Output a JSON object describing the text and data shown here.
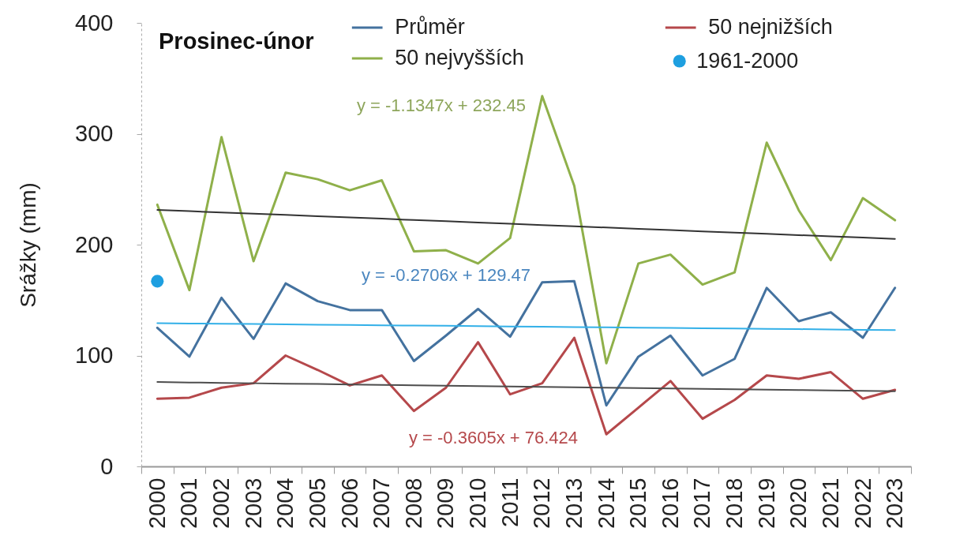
{
  "chart_data": {
    "type": "line",
    "title": "Prosinec-únor",
    "ylabel": "Srážky  (mm)",
    "categories": [
      "2000",
      "2001",
      "2002",
      "2003",
      "2004",
      "2005",
      "2006",
      "2007",
      "2008",
      "2009",
      "2010",
      "2011",
      "2012",
      "2013",
      "2014",
      "2015",
      "2016",
      "2017",
      "2018",
      "2019",
      "2020",
      "2021",
      "2022",
      "2023"
    ],
    "series": [
      {
        "name": "Průměr",
        "color": "#44729f",
        "values": [
          125,
          99,
          152,
          115,
          165,
          149,
          141,
          141,
          95,
          118,
          142,
          117,
          166,
          167,
          55,
          99,
          118,
          82,
          97,
          161,
          131,
          139,
          116,
          161
        ]
      },
      {
        "name": "50 nejnižších",
        "color": "#b5484b",
        "values": [
          61,
          62,
          71,
          75,
          100,
          87,
          73,
          82,
          50,
          71,
          112,
          65,
          75,
          116,
          29,
          53,
          77,
          43,
          60,
          82,
          79,
          85,
          61,
          69
        ]
      },
      {
        "name": "50 nejvyšších",
        "color": "#8fb04a",
        "values": [
          236,
          159,
          297,
          185,
          265,
          259,
          249,
          258,
          194,
          195,
          183,
          206,
          334,
          253,
          93,
          183,
          191,
          164,
          175,
          292,
          231,
          186,
          242,
          222
        ]
      },
      {
        "name": "1961-2000",
        "type": "scatter",
        "color": "#1e9fe0",
        "values": [
          167,
          null,
          null,
          null,
          null,
          null,
          null,
          null,
          null,
          null,
          null,
          null,
          null,
          null,
          null,
          null,
          null,
          null,
          null,
          null,
          null,
          null,
          null,
          null
        ]
      },
      {
        "type": "line",
        "color": "#333333",
        "values": [
          231.3,
          230.2,
          229.0,
          227.9,
          226.8,
          225.6,
          224.5,
          223.4,
          222.2,
          221.1,
          220.0,
          218.8,
          217.7,
          216.6,
          215.4,
          214.3,
          213.2,
          212.0,
          210.9,
          209.8,
          208.6,
          207.5,
          206.4,
          205.2
        ]
      },
      {
        "type": "line",
        "color": "#33b0e8",
        "values": [
          129.2,
          128.9,
          128.7,
          128.4,
          128.1,
          127.8,
          127.6,
          127.3,
          127.0,
          126.8,
          126.5,
          126.2,
          126.0,
          125.7,
          125.4,
          125.1,
          124.9,
          124.6,
          124.3,
          124.1,
          123.8,
          123.5,
          123.2,
          123.0
        ]
      },
      {
        "type": "line",
        "color": "#4d4d4d",
        "values": [
          76.1,
          75.7,
          75.3,
          75.0,
          74.6,
          74.3,
          73.9,
          73.5,
          73.2,
          72.8,
          72.5,
          72.1,
          71.7,
          71.4,
          71.0,
          70.7,
          70.3,
          69.9,
          69.6,
          69.2,
          68.9,
          68.5,
          68.1,
          67.8
        ]
      }
    ],
    "ylim": [
      0,
      400
    ],
    "yticks": [
      0,
      100,
      200,
      300,
      400
    ],
    "grid": false,
    "legend": "top",
    "annotations": [
      "y = -1.1347x + 232.45",
      "y = -0.2706x + 129.47",
      "y = -0.3605x + 76.424"
    ]
  }
}
